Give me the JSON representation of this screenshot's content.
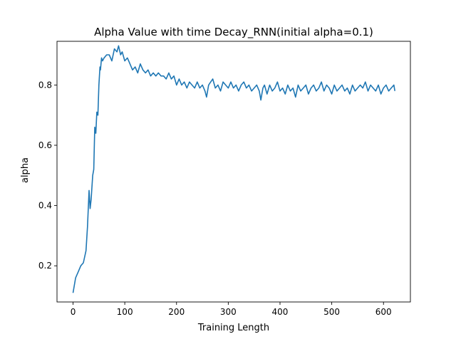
{
  "chart_data": {
    "type": "line",
    "title": "Alpha Value with time Decay_RNN(initial alpha=0.1)",
    "xlabel": "Training Length",
    "ylabel": "alpha",
    "xlim": [
      -31,
      652
    ],
    "ylim": [
      0.08,
      0.945
    ],
    "xticks": [
      0,
      100,
      200,
      300,
      400,
      500,
      600
    ],
    "yticks": [
      0.2,
      0.4,
      0.6,
      0.8
    ],
    "grid": false,
    "line_color": "#1f77b4",
    "series": [
      {
        "x": [
          0,
          5,
          10,
          15,
          20,
          25,
          28,
          31,
          33,
          35,
          38,
          40,
          42,
          44,
          46,
          48,
          50,
          52,
          53,
          55,
          57,
          60,
          65,
          70,
          75,
          80,
          85,
          88,
          92,
          95,
          100,
          105,
          110,
          115,
          120,
          125,
          130,
          135,
          140,
          145,
          150,
          155,
          160,
          165,
          170,
          175,
          180,
          185,
          190,
          195,
          200,
          205,
          210,
          215,
          220,
          225,
          230,
          235,
          240,
          245,
          250,
          255,
          258,
          262,
          266,
          270,
          275,
          280,
          285,
          290,
          295,
          300,
          305,
          310,
          315,
          320,
          325,
          330,
          335,
          340,
          345,
          350,
          355,
          360,
          363,
          367,
          370,
          375,
          380,
          385,
          390,
          395,
          400,
          405,
          410,
          415,
          420,
          425,
          430,
          435,
          440,
          445,
          450,
          455,
          460,
          465,
          470,
          475,
          480,
          485,
          490,
          495,
          500,
          505,
          510,
          515,
          520,
          525,
          530,
          535,
          540,
          545,
          550,
          555,
          560,
          565,
          570,
          575,
          580,
          585,
          590,
          595,
          600,
          605,
          610,
          615,
          620,
          622
        ],
        "y": [
          0.11,
          0.16,
          0.18,
          0.2,
          0.21,
          0.25,
          0.33,
          0.45,
          0.39,
          0.42,
          0.5,
          0.52,
          0.66,
          0.64,
          0.71,
          0.7,
          0.8,
          0.86,
          0.85,
          0.89,
          0.88,
          0.89,
          0.9,
          0.9,
          0.88,
          0.92,
          0.91,
          0.93,
          0.9,
          0.91,
          0.88,
          0.89,
          0.87,
          0.85,
          0.86,
          0.84,
          0.87,
          0.85,
          0.84,
          0.85,
          0.83,
          0.84,
          0.83,
          0.84,
          0.83,
          0.83,
          0.82,
          0.84,
          0.82,
          0.83,
          0.8,
          0.82,
          0.8,
          0.81,
          0.79,
          0.81,
          0.8,
          0.79,
          0.81,
          0.79,
          0.8,
          0.78,
          0.76,
          0.8,
          0.81,
          0.82,
          0.79,
          0.8,
          0.78,
          0.81,
          0.8,
          0.79,
          0.81,
          0.79,
          0.8,
          0.78,
          0.8,
          0.81,
          0.79,
          0.8,
          0.78,
          0.79,
          0.8,
          0.78,
          0.75,
          0.79,
          0.8,
          0.77,
          0.8,
          0.78,
          0.79,
          0.81,
          0.78,
          0.79,
          0.77,
          0.8,
          0.78,
          0.79,
          0.76,
          0.8,
          0.78,
          0.79,
          0.8,
          0.77,
          0.79,
          0.8,
          0.78,
          0.79,
          0.81,
          0.78,
          0.8,
          0.79,
          0.77,
          0.8,
          0.78,
          0.79,
          0.8,
          0.78,
          0.79,
          0.77,
          0.8,
          0.78,
          0.79,
          0.8,
          0.79,
          0.81,
          0.78,
          0.8,
          0.79,
          0.78,
          0.8,
          0.77,
          0.79,
          0.8,
          0.78,
          0.79,
          0.8,
          0.78
        ]
      }
    ]
  }
}
